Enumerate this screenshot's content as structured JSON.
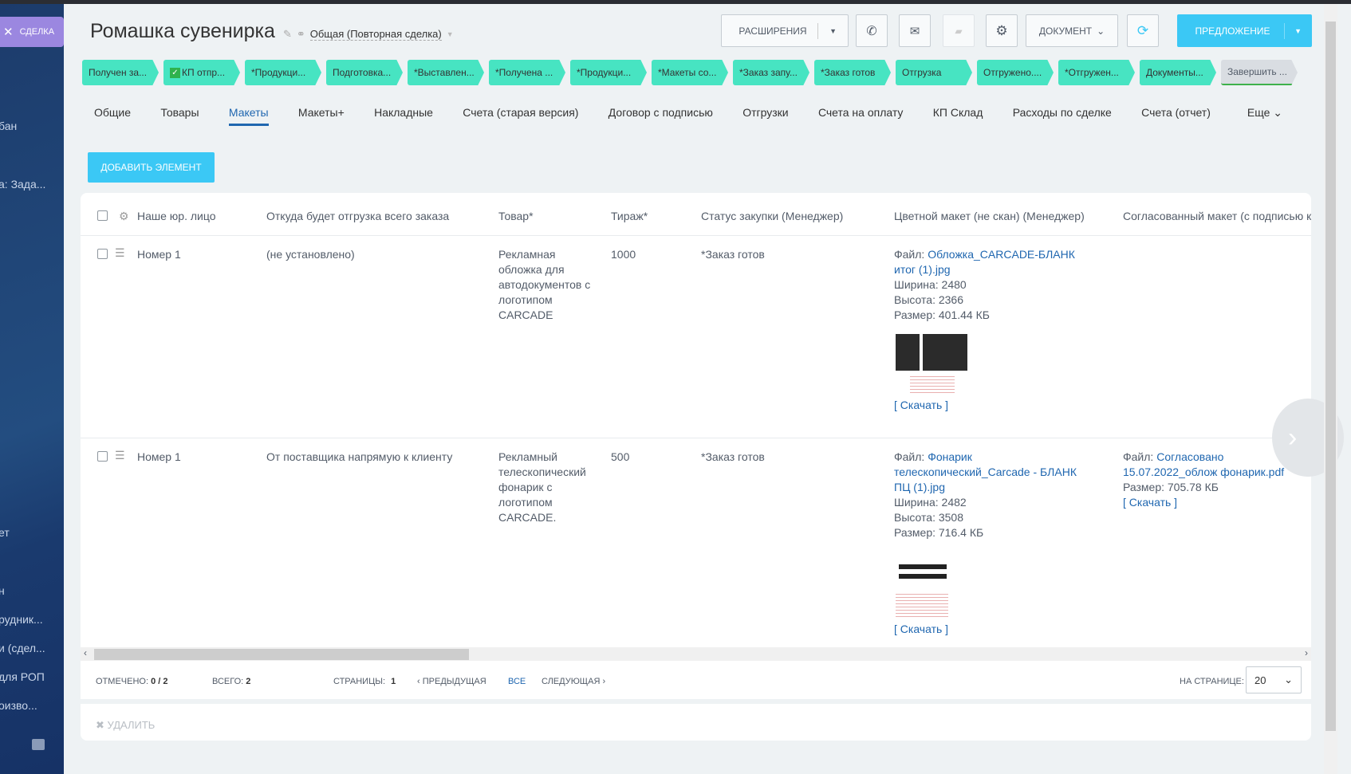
{
  "sidebar": {
    "deal_tab": "СДЕЛКА",
    "items": [
      "бан",
      "а: Зада...",
      "ет",
      "н",
      "рудник...",
      "и (сдел...",
      "для РОП",
      "оизво..."
    ]
  },
  "header": {
    "title": "Ромашка сувенирка",
    "category": "Общая (Повторная сделка)",
    "extensions": "РАСШИРЕНИЯ",
    "document": "ДОКУМЕНТ",
    "proposal": "ПРЕДЛОЖЕНИЕ"
  },
  "stages": [
    "Получен за...",
    "КП отпр...",
    "*Продукци...",
    "Подготовка...",
    "*Выставлен...",
    "*Получена ...",
    "*Продукци...",
    "*Макеты со...",
    "*Заказ запу...",
    "*Заказ готов",
    "Отгрузка",
    "Отгружено....",
    "*Отгружен...",
    "Документы...",
    "Завершить ..."
  ],
  "tabs": [
    "Общие",
    "Товары",
    "Макеты",
    "Макеты+",
    "Накладные",
    "Счета (старая версия)",
    "Договор с подписью",
    "Отгрузки",
    "Счета на оплату",
    "КП Склад",
    "Расходы по сделке",
    "Счета (отчет)"
  ],
  "active_tab": "Макеты",
  "more_tab": "Еще",
  "add_button": "ДОБАВИТЬ ЭЛЕМЕНТ",
  "table": {
    "columns": [
      "Наше юр. лицо",
      "Откуда будет отгрузка всего заказа",
      "Товар*",
      "Тираж*",
      "Статус закупки (Менеджер)",
      "Цветной макет (не скан) (Менеджер)",
      "Согласованный макет (с подписью кл"
    ],
    "rows": [
      {
        "entity": "Номер 1",
        "source": "(не установлено)",
        "product": "Рекламная обложка для автодокументов с логотипом CARCADE",
        "qty": "1000",
        "status": "*Заказ готов",
        "color_file": {
          "label": "Файл:",
          "name": "Обложка_CARCADE-БЛАНК итог (1).jpg",
          "width": "Ширина: 2480",
          "height": "Высота: 2366",
          "size": "Размер: 401.44 КБ",
          "download": "[ Скачать ]"
        }
      },
      {
        "entity": "Номер 1",
        "source": "От поставщика напрямую к клиенту",
        "product": "Рекламный телескопический фонарик с логотипом CARCADE.",
        "qty": "500",
        "status": "*Заказ готов",
        "color_file": {
          "label": "Файл:",
          "name": "Фонарик телескопический_Carcade - БЛАНК ПЦ (1).jpg",
          "width": "Ширина: 2482",
          "height": "Высота: 3508",
          "size": "Размер: 716.4 КБ",
          "download": "[ Скачать ]"
        },
        "approved_file": {
          "label": "Файл:",
          "name": "Согласовано 15.07.2022_облож фонарик.pdf",
          "size": "Размер: 705.78 КБ",
          "download": "[ Скачать ]"
        }
      }
    ]
  },
  "footer": {
    "marked_label": "ОТМЕЧЕНО:",
    "marked": "0 / 2",
    "total_label": "ВСЕГО:",
    "total": "2",
    "pages_label": "СТРАНИЦЫ:",
    "page": "1",
    "prev": "ПРЕДЫДУЩАЯ",
    "all": "ВСЕ",
    "next": "СЛЕДУЮЩАЯ",
    "per_page_label": "НА СТРАНИЦЕ:",
    "per_page": "20",
    "delete": "УДАЛИТЬ"
  },
  "colors": {
    "accent": "#3bc8f5",
    "stage": "#47e4c2",
    "link": "#2067b0"
  }
}
